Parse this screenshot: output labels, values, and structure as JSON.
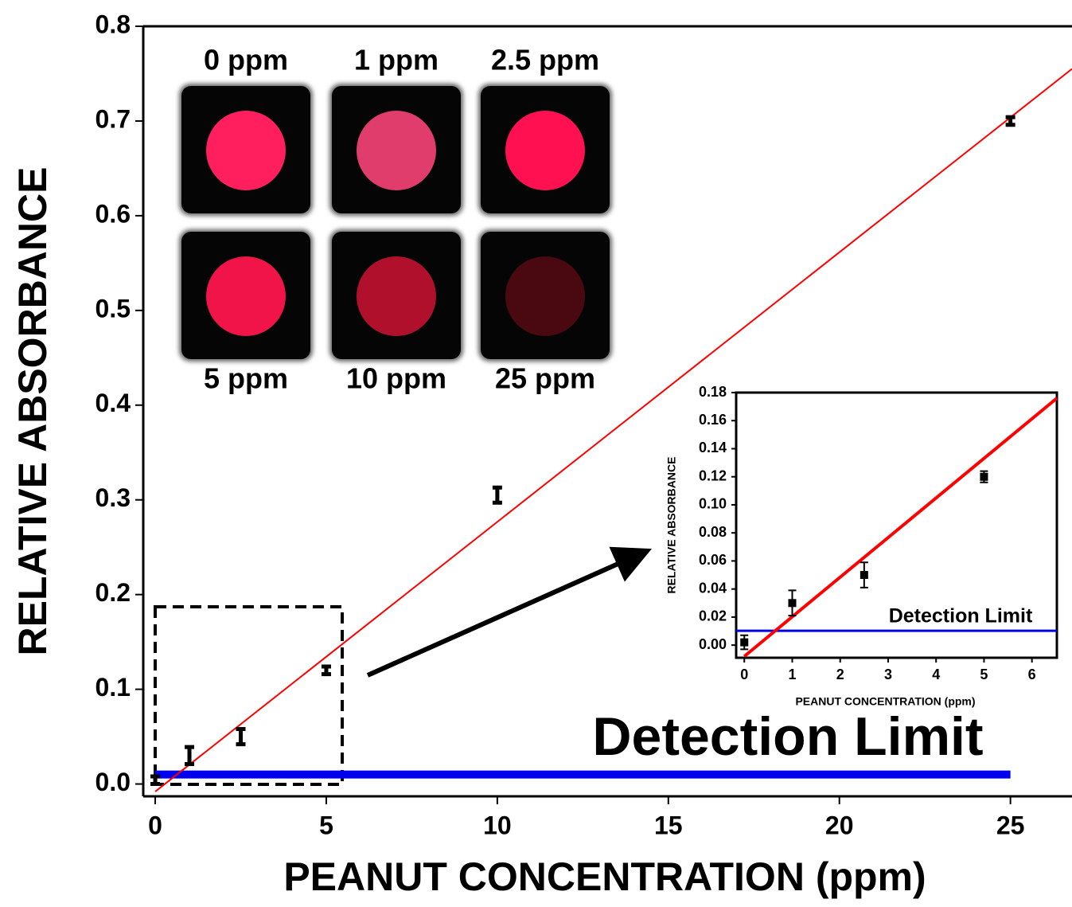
{
  "chart_data": [
    {
      "type": "scatter",
      "x_label": "PEANUT CONCENTRATION (ppm)",
      "y_label": "RELATIVE ABSORBANCE",
      "x": [
        0,
        1,
        2.5,
        5,
        10,
        25
      ],
      "values": [
        0.004,
        0.03,
        0.05,
        0.12,
        0.305,
        0.7
      ],
      "errors": [
        0.004,
        0.009,
        0.008,
        0.004,
        0.008,
        0.004
      ],
      "color": "#000000",
      "markers": false,
      "fit": {
        "x": [
          0,
          26.8
        ],
        "values": [
          -0.008,
          0.755
        ],
        "color": "#ff0000"
      },
      "detection_limit": {
        "label": "Detection Limit",
        "x": [
          0,
          25
        ],
        "values": [
          0.01,
          0.01
        ],
        "color": "#0000ee"
      },
      "xlim": [
        -0.35,
        26.8
      ],
      "ylim": [
        -0.013,
        0.8
      ],
      "xticks": [
        0,
        5,
        10,
        15,
        20,
        25
      ],
      "yticks": [
        {
          "value": 0,
          "label": "0.0"
        },
        0.1,
        0.2,
        0.3,
        0.4,
        0.5,
        0.6,
        0.7,
        0.8
      ],
      "photos": [
        {
          "label": "0 ppm",
          "color": "#ff1f5e"
        },
        {
          "label": "1 ppm",
          "color": "#e03c6c"
        },
        {
          "label": "2.5 ppm",
          "color": "#ff1050"
        },
        {
          "label": "5 ppm",
          "color": "#f01448"
        },
        {
          "label": "10 ppm",
          "color": "#b0102c"
        },
        {
          "label": "25 ppm",
          "color": "#4a0810"
        }
      ]
    },
    {
      "type": "scatter",
      "x_label": "PEANUT CONCENTRATION (ppm)",
      "y_label": "RELATIVE ABSORBANCE",
      "x": [
        0,
        1,
        2.5,
        5
      ],
      "values": [
        0.002,
        0.03,
        0.05,
        0.12
      ],
      "errors": [
        0.005,
        0.009,
        0.009,
        0.004
      ],
      "color": "#000000",
      "markers": true,
      "fit": {
        "x": [
          0,
          6.52
        ],
        "values": [
          -0.008,
          0.176
        ],
        "color": "#ff0000"
      },
      "detection_limit": {
        "label": "Detection Limit",
        "x": [
          -0.17,
          6.52
        ],
        "values": [
          0.0102,
          0.0102
        ],
        "color": "#0000ee"
      },
      "xlim": [
        -0.17,
        6.52
      ],
      "ylim": [
        -0.009,
        0.18
      ],
      "xticks": [
        0,
        1,
        2,
        3,
        4,
        5,
        6
      ],
      "yticks": [
        {
          "value": 0,
          "label": "0.00"
        },
        0.02,
        0.04,
        0.06,
        0.08,
        {
          "value": 0.1,
          "label": "0.10"
        },
        0.12,
        0.14,
        0.16,
        0.18
      ]
    }
  ]
}
